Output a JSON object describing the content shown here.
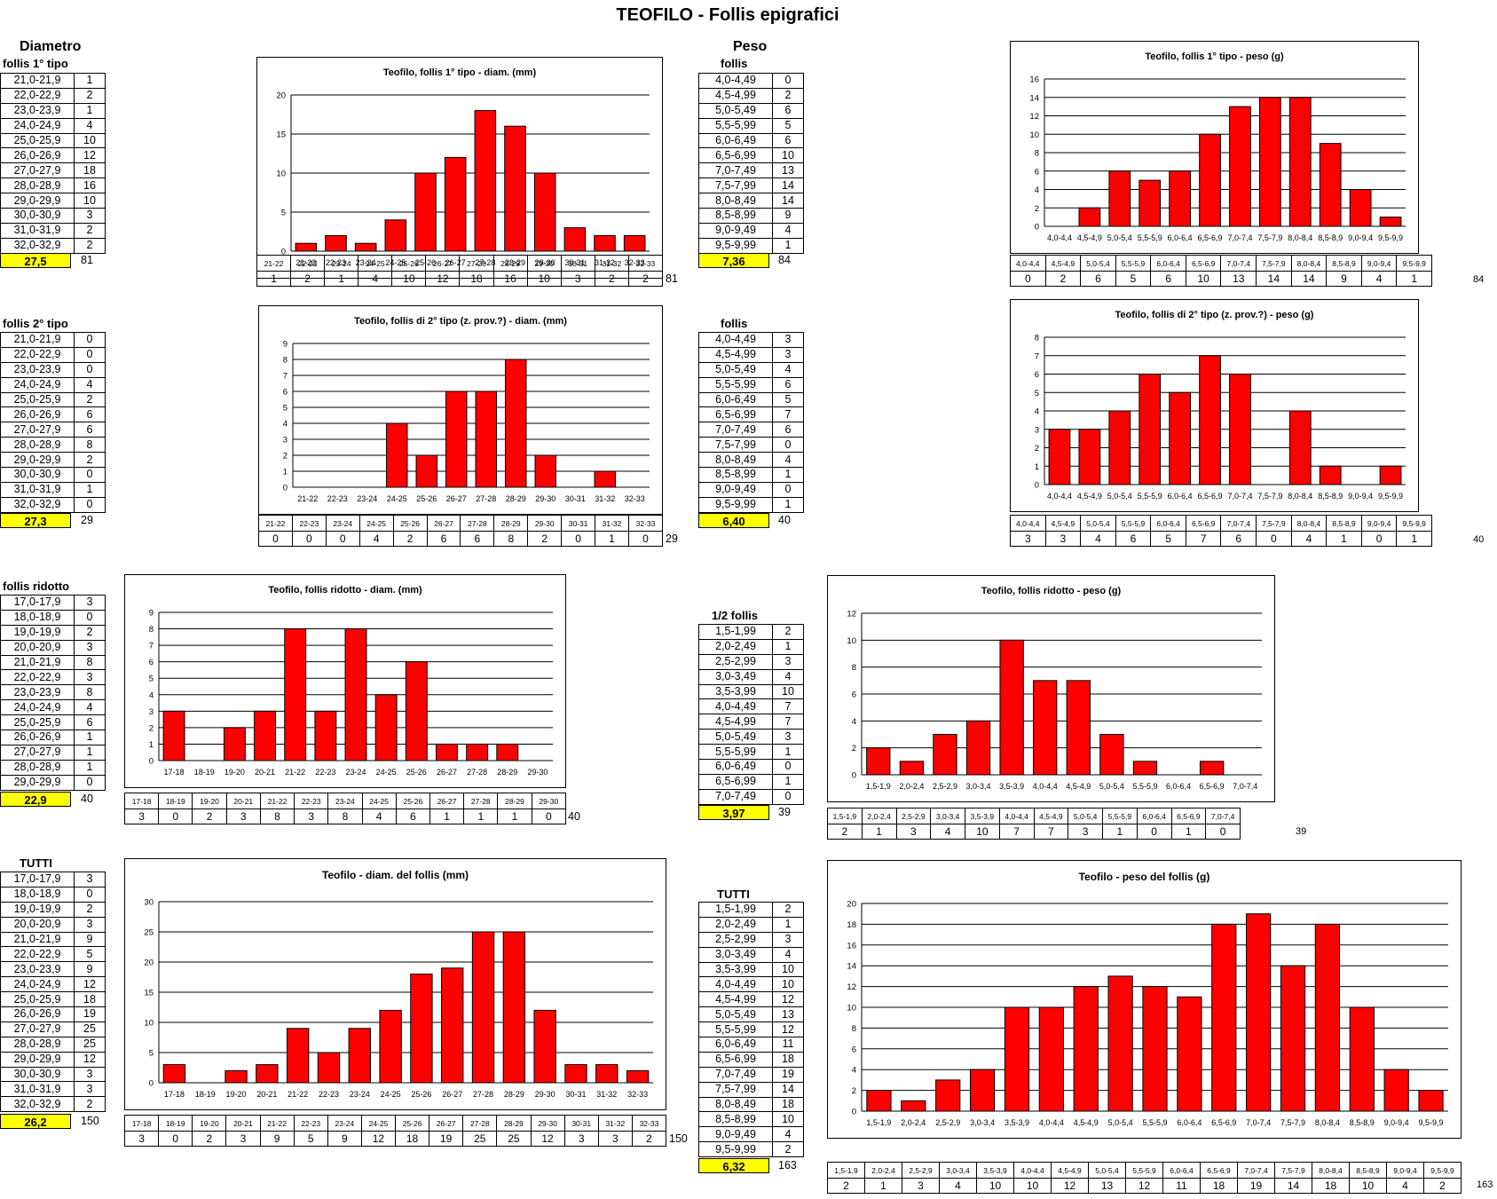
{
  "title": "TEOFILO - Follis epigrafici",
  "labels": {
    "diametro": "Diametro",
    "peso": "Peso",
    "follis_1": "follis 1° tipo",
    "follis_2": "follis 2° tipo",
    "follis_ridotto": "follis ridotto",
    "tutti": "TUTTI",
    "follis": "follis",
    "half_follis": "1/2 follis"
  },
  "colors": {
    "bar": "#ff0000",
    "mean_bg": "#ffff00"
  },
  "freq_tables": {
    "d1": {
      "ranges": [
        "21,0-21,9",
        "22,0-22,9",
        "23,0-23,9",
        "24,0-24,9",
        "25,0-25,9",
        "26,0-26,9",
        "27,0-27,9",
        "28,0-28,9",
        "29,0-29,9",
        "30,0-30,9",
        "31,0-31,9",
        "32,0-32,9"
      ],
      "counts": [
        1,
        2,
        1,
        4,
        10,
        12,
        18,
        16,
        10,
        3,
        2,
        2
      ],
      "mean": "27,5",
      "total": "81"
    },
    "d2": {
      "ranges": [
        "21,0-21,9",
        "22,0-22,9",
        "23,0-23,9",
        "24,0-24,9",
        "25,0-25,9",
        "26,0-26,9",
        "27,0-27,9",
        "28,0-28,9",
        "29,0-29,9",
        "30,0-30,9",
        "31,0-31,9",
        "32,0-32,9"
      ],
      "counts": [
        0,
        0,
        0,
        4,
        2,
        6,
        6,
        8,
        2,
        0,
        1,
        0
      ],
      "mean": "27,3",
      "total": "29"
    },
    "d3": {
      "ranges": [
        "17,0-17,9",
        "18,0-18,9",
        "19,0-19,9",
        "20,0-20,9",
        "21,0-21,9",
        "22,0-22,9",
        "23,0-23,9",
        "24,0-24,9",
        "25,0-25,9",
        "26,0-26,9",
        "27,0-27,9",
        "28,0-28,9",
        "29,0-29,9"
      ],
      "counts": [
        3,
        0,
        2,
        3,
        8,
        3,
        8,
        4,
        6,
        1,
        1,
        1,
        0
      ],
      "mean": "22,9",
      "total": "40"
    },
    "d4": {
      "ranges": [
        "17,0-17,9",
        "18,0-18,9",
        "19,0-19,9",
        "20,0-20,9",
        "21,0-21,9",
        "22,0-22,9",
        "23,0-23,9",
        "24,0-24,9",
        "25,0-25,9",
        "26,0-26,9",
        "27,0-27,9",
        "28,0-28,9",
        "29,0-29,9",
        "30,0-30,9",
        "31,0-31,9",
        "32,0-32,9"
      ],
      "counts": [
        3,
        0,
        2,
        3,
        9,
        5,
        9,
        12,
        18,
        19,
        25,
        25,
        12,
        3,
        3,
        2
      ],
      "mean": "26,2",
      "total": "150"
    },
    "w1": {
      "ranges": [
        "4,0-4,49",
        "4,5-4,99",
        "5,0-5,49",
        "5,5-5,99",
        "6,0-6,49",
        "6,5-6,99",
        "7,0-7,49",
        "7,5-7,99",
        "8,0-8,49",
        "8,5-8,99",
        "9,0-9,49",
        "9,5-9,99"
      ],
      "counts": [
        0,
        2,
        6,
        5,
        6,
        10,
        13,
        14,
        14,
        9,
        4,
        1
      ],
      "mean": "7,36",
      "total": "84"
    },
    "w2": {
      "ranges": [
        "4,0-4,49",
        "4,5-4,99",
        "5,0-5,49",
        "5,5-5,99",
        "6,0-6,49",
        "6,5-6,99",
        "7,0-7,49",
        "7,5-7,99",
        "8,0-8,49",
        "8,5-8,99",
        "9,0-9,49",
        "9,5-9,99"
      ],
      "counts": [
        3,
        3,
        4,
        6,
        5,
        7,
        6,
        0,
        4,
        1,
        0,
        1
      ],
      "mean": "6,40",
      "total": "40"
    },
    "w3": {
      "ranges": [
        "1,5-1,99",
        "2,0-2,49",
        "2,5-2,99",
        "3,0-3,49",
        "3,5-3,99",
        "4,0-4,49",
        "4,5-4,99",
        "5,0-5,49",
        "5,5-5,99",
        "6,0-6,49",
        "6,5-6,99",
        "7,0-7,49"
      ],
      "counts": [
        2,
        1,
        3,
        4,
        10,
        7,
        7,
        3,
        1,
        0,
        1,
        0
      ],
      "mean": "3,97",
      "total": "39"
    },
    "w4": {
      "ranges": [
        "1,5-1,99",
        "2,0-2,49",
        "2,5-2,99",
        "3,0-3,49",
        "3,5-3,99",
        "4,0-4,49",
        "4,5-4,99",
        "5,0-5,49",
        "5,5-5,99",
        "6,0-6,49",
        "6,5-6,99",
        "7,0-7,49",
        "7,5-7,99",
        "8,0-8,49",
        "8,5-8,99",
        "9,0-9,49",
        "9,5-9,99"
      ],
      "counts": [
        2,
        1,
        3,
        4,
        10,
        10,
        12,
        13,
        12,
        11,
        18,
        19,
        14,
        18,
        10,
        4,
        2
      ],
      "mean": "6,32",
      "total": "163"
    }
  },
  "chart_data": [
    {
      "id": "c1",
      "type": "bar",
      "title": "Teofilo, follis 1° tipo - diam.  (mm)",
      "categories": [
        "21-22",
        "22-23",
        "23-24",
        "24-25",
        "25-26",
        "26-27",
        "27-28",
        "28-29",
        "29-30",
        "30-31",
        "31-32",
        "32-33"
      ],
      "values": [
        1,
        2,
        1,
        4,
        10,
        12,
        18,
        16,
        10,
        3,
        2,
        2
      ],
      "ylim": [
        0,
        20
      ],
      "yticks": [
        0,
        5,
        10,
        15,
        20
      ],
      "total": "81"
    },
    {
      "id": "c2",
      "type": "bar",
      "title": "Teofilo, follis 1° tipo - peso (g)",
      "categories": [
        "4,0-4,4",
        "4,5-4,9",
        "5,0-5,4",
        "5,5-5,9",
        "6,0-6,4",
        "6,5-6,9",
        "7,0-7,4",
        "7,5-7,9",
        "8,0-8,4",
        "8,5-8,9",
        "9,0-9,4",
        "9,5-9,9"
      ],
      "values": [
        0,
        2,
        6,
        5,
        6,
        10,
        13,
        14,
        14,
        9,
        4,
        1
      ],
      "ylim": [
        0,
        16
      ],
      "yticks": [
        0,
        2,
        4,
        6,
        8,
        10,
        12,
        14,
        16
      ],
      "total": "84"
    },
    {
      "id": "c3",
      "type": "bar",
      "title": "Teofilo, follis di 2° tipo (z. prov.?) - diam. (mm)",
      "categories": [
        "21-22",
        "22-23",
        "23-24",
        "24-25",
        "25-26",
        "26-27",
        "27-28",
        "28-29",
        "29-30",
        "30-31",
        "31-32",
        "32-33"
      ],
      "values": [
        0,
        0,
        0,
        4,
        2,
        6,
        6,
        8,
        2,
        0,
        1,
        0
      ],
      "ylim": [
        0,
        9
      ],
      "yticks": [
        0,
        1,
        2,
        3,
        4,
        5,
        6,
        7,
        8,
        9
      ],
      "total": "29"
    },
    {
      "id": "c4",
      "type": "bar",
      "title": "Teofilo, follis di 2° tipo (z. prov.?) - peso (g)",
      "categories": [
        "4,0-4,4",
        "4,5-4,9",
        "5,0-5,4",
        "5,5-5,9",
        "6,0-6,4",
        "6,5-6,9",
        "7,0-7,4",
        "7,5-7,9",
        "8,0-8,4",
        "8,5-8,9",
        "9,0-9,4",
        "9,5-9,9"
      ],
      "values": [
        3,
        3,
        4,
        6,
        5,
        7,
        6,
        0,
        4,
        1,
        0,
        1
      ],
      "ylim": [
        0,
        8
      ],
      "yticks": [
        0,
        1,
        2,
        3,
        4,
        5,
        6,
        7,
        8
      ],
      "total": "40"
    },
    {
      "id": "c5",
      "type": "bar",
      "title": "Teofilo, follis ridotto - diam. (mm)",
      "categories": [
        "17-18",
        "18-19",
        "19-20",
        "20-21",
        "21-22",
        "22-23",
        "23-24",
        "24-25",
        "25-26",
        "26-27",
        "27-28",
        "28-29",
        "29-30"
      ],
      "values": [
        3,
        0,
        2,
        3,
        8,
        3,
        8,
        4,
        6,
        1,
        1,
        1,
        0
      ],
      "ylim": [
        0,
        9
      ],
      "yticks": [
        0,
        1,
        2,
        3,
        4,
        5,
        6,
        7,
        8,
        9
      ],
      "total": "40"
    },
    {
      "id": "c6",
      "type": "bar",
      "title": "Teofilo, follis ridotto - peso (g)",
      "categories": [
        "1,5-1,9",
        "2,0-2,4",
        "2,5-2,9",
        "3,0-3,4",
        "3,5-3,9",
        "4,0-4,4",
        "4,5-4,9",
        "5,0-5,4",
        "5,5-5,9",
        "6,0-6,4",
        "6,5-6,9",
        "7,0-7,4"
      ],
      "values": [
        2,
        1,
        3,
        4,
        10,
        7,
        7,
        3,
        1,
        0,
        1,
        0
      ],
      "ylim": [
        0,
        12
      ],
      "yticks": [
        0,
        2,
        4,
        6,
        8,
        10,
        12
      ],
      "total": "39"
    },
    {
      "id": "c7",
      "type": "bar",
      "title": "Teofilo - diam. del follis (mm)",
      "categories": [
        "17-18",
        "18-19",
        "19-20",
        "20-21",
        "21-22",
        "22-23",
        "23-24",
        "24-25",
        "25-26",
        "26-27",
        "27-28",
        "28-29",
        "29-30",
        "30-31",
        "31-32",
        "32-33"
      ],
      "values": [
        3,
        0,
        2,
        3,
        9,
        5,
        9,
        12,
        18,
        19,
        25,
        25,
        12,
        3,
        3,
        2
      ],
      "ylim": [
        0,
        30
      ],
      "yticks": [
        0,
        5,
        10,
        15,
        20,
        25,
        30
      ],
      "total": "150"
    },
    {
      "id": "c8",
      "type": "bar",
      "title": "Teofilo - peso del follis (g)",
      "categories": [
        "1,5-1,9",
        "2,0-2,4",
        "2,5-2,9",
        "3,0-3,4",
        "3,5-3,9",
        "4,0-4,4",
        "4,5-4,9",
        "5,0-5,4",
        "5,5-5,9",
        "6,0-6,4",
        "6,5-6,9",
        "7,0-7,4",
        "7,5-7,9",
        "8,0-8,4",
        "8,5-8,9",
        "9,0-9,4",
        "9,5-9,9"
      ],
      "values": [
        2,
        1,
        3,
        4,
        10,
        10,
        12,
        13,
        12,
        11,
        18,
        19,
        14,
        18,
        10,
        4,
        2
      ],
      "ylim": [
        0,
        20
      ],
      "yticks": [
        0,
        2,
        4,
        6,
        8,
        10,
        12,
        14,
        16,
        18,
        20
      ],
      "total": "163"
    }
  ]
}
